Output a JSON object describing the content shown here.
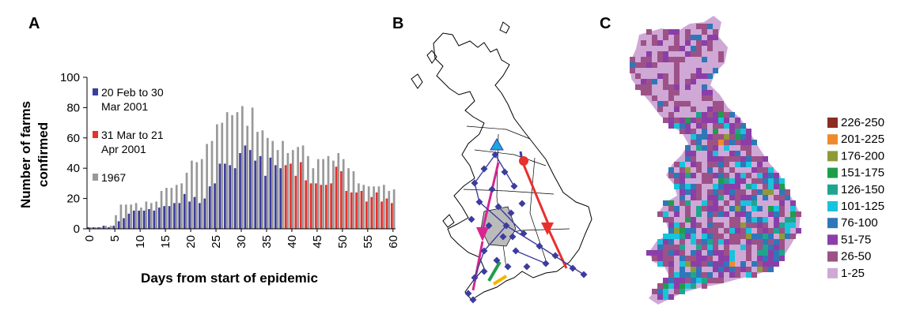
{
  "panels": {
    "a": "A",
    "b": "B",
    "c": "C"
  },
  "chart_data": {
    "type": "bar",
    "xlabel": "Days from start of epidemic",
    "ylabel": "Number of farms confirmed",
    "ylim": [
      0,
      100
    ],
    "xlim": [
      0,
      61
    ],
    "yticks": [
      0,
      20,
      40,
      60,
      80,
      100
    ],
    "xticks": [
      0,
      5,
      10,
      15,
      20,
      25,
      30,
      35,
      40,
      45,
      50,
      55,
      60
    ],
    "legend_position": "top-left",
    "series": [
      {
        "name": "20 Feb to 30 Mar 2001",
        "color": "#3c3ca0",
        "x": [
          0,
          1,
          2,
          3,
          4,
          5,
          6,
          7,
          8,
          9,
          10,
          11,
          12,
          13,
          14,
          15,
          16,
          17,
          18,
          19,
          20,
          21,
          22,
          23,
          24,
          25,
          26,
          27,
          28,
          29,
          30,
          31,
          32,
          33,
          34,
          35,
          36,
          37,
          38
        ],
        "values": [
          1,
          1,
          1,
          2,
          1,
          2,
          5,
          7,
          10,
          12,
          12,
          12,
          13,
          12,
          14,
          15,
          15,
          17,
          17,
          23,
          18,
          21,
          17,
          20,
          28,
          30,
          43,
          43,
          42,
          40,
          50,
          55,
          52,
          45,
          48,
          35,
          47,
          42,
          40
        ]
      },
      {
        "name": "31 Mar to 21 Apr 2001",
        "color": "#e8302c",
        "x": [
          39,
          40,
          41,
          42,
          43,
          44,
          45,
          46,
          47,
          48,
          49,
          50,
          51,
          52,
          53,
          54,
          55,
          56,
          57,
          58,
          59,
          60
        ],
        "values": [
          42,
          43,
          35,
          44,
          32,
          30,
          30,
          29,
          29,
          30,
          41,
          38,
          25,
          24,
          24,
          25,
          18,
          21,
          24,
          18,
          20,
          17
        ]
      },
      {
        "name": "1967",
        "color": "#999999",
        "x": [
          0,
          1,
          2,
          3,
          4,
          5,
          6,
          7,
          8,
          9,
          10,
          11,
          12,
          13,
          14,
          15,
          16,
          17,
          18,
          19,
          20,
          21,
          22,
          23,
          24,
          25,
          26,
          27,
          28,
          29,
          30,
          31,
          32,
          33,
          34,
          35,
          36,
          37,
          38,
          39,
          40,
          41,
          42,
          43,
          44,
          45,
          46,
          47,
          48,
          49,
          50,
          51,
          52,
          53,
          54,
          55,
          56,
          57,
          58,
          59,
          60
        ],
        "values": [
          1,
          1,
          1,
          2,
          2,
          9,
          16,
          16,
          16,
          17,
          14,
          18,
          17,
          18,
          25,
          27,
          27,
          29,
          30,
          37,
          45,
          44,
          46,
          56,
          58,
          69,
          70,
          77,
          75,
          77,
          81,
          68,
          80,
          64,
          65,
          60,
          58,
          52,
          58,
          50,
          52,
          54,
          55,
          48,
          40,
          46,
          46,
          48,
          45,
          50,
          46,
          40,
          38,
          30,
          29,
          28,
          28,
          28,
          29,
          25,
          26
        ]
      }
    ]
  },
  "map_c_legend": [
    {
      "label": "226-250",
      "color": "#8b2d22"
    },
    {
      "label": "201-225",
      "color": "#ee8a2e"
    },
    {
      "label": "176-200",
      "color": "#8f9a38"
    },
    {
      "label": "151-175",
      "color": "#1f9e4a"
    },
    {
      "label": "126-150",
      "color": "#1fa58e"
    },
    {
      "label": "101-125",
      "color": "#18c3dc"
    },
    {
      "label": "76-100",
      "color": "#2f77b8"
    },
    {
      "label": "51-75",
      "color": "#8c3ea8"
    },
    {
      "label": "26-50",
      "color": "#9c5287"
    },
    {
      "label": "1-25",
      "color": "#cfa8d6"
    }
  ]
}
